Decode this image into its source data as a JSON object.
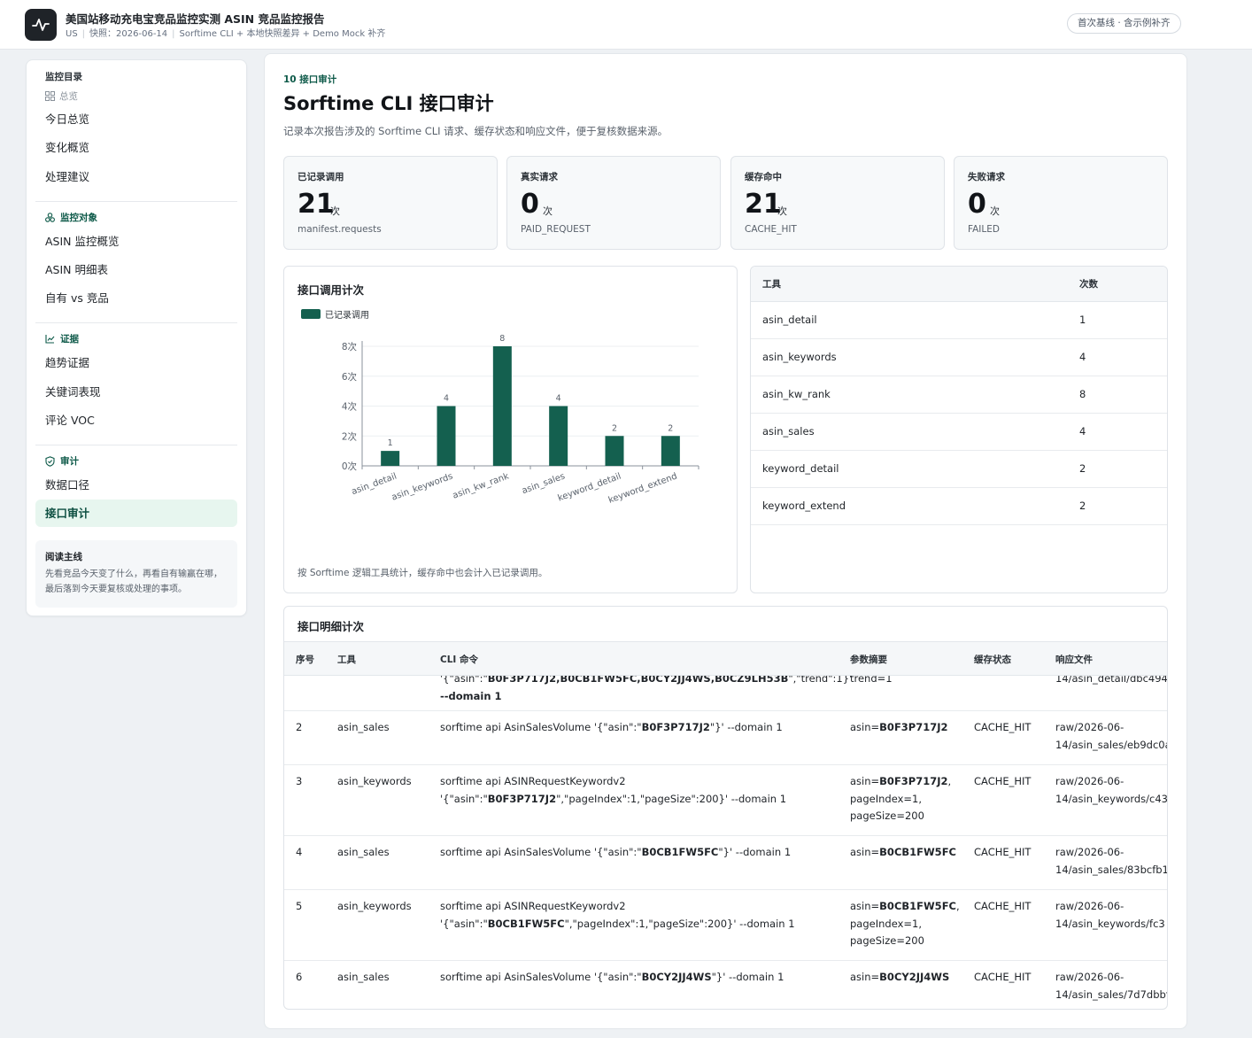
{
  "header": {
    "title": "美国站移动充电宝竞品监控实测 ASIN 竞品监控报告",
    "meta": [
      "US",
      "快照：2026-06-14",
      "Sorftime CLI + 本地快照差异 + Demo Mock 补齐"
    ],
    "baseline_badge": "首次基线 · 含示例补齐"
  },
  "sidebar": {
    "groups": [
      {
        "title": "监控目录",
        "sub": "总览",
        "items": [
          "今日总览",
          "变化概览",
          "处理建议"
        ]
      },
      {
        "title": "监控对象",
        "items": [
          "ASIN 监控概览",
          "ASIN 明细表",
          "自有 vs 竞品"
        ]
      },
      {
        "title": "证据",
        "items": [
          "趋势证据",
          "关键词表现",
          "评论 VOC"
        ]
      },
      {
        "title": "审计",
        "items": [
          "数据口径",
          "接口审计"
        ]
      }
    ],
    "active_item": "接口审计",
    "reading": {
      "title": "阅读主线",
      "text": "先看竞品今天变了什么，再看自有输赢在哪，最后落到今天要复核或处理的事项。"
    }
  },
  "section": {
    "kicker": "10 接口审计",
    "title": "Sorftime CLI 接口审计",
    "desc": "记录本次报告涉及的 Sorftime CLI 请求、缓存状态和响应文件，便于复核数据来源。"
  },
  "stats": [
    {
      "label": "已记录调用",
      "value": "21",
      "unit": "次",
      "foot": "manifest.requests"
    },
    {
      "label": "真实请求",
      "value": "0",
      "unit": "次",
      "foot": "PAID_REQUEST"
    },
    {
      "label": "缓存命中",
      "value": "21",
      "unit": "次",
      "foot": "CACHE_HIT"
    },
    {
      "label": "失败请求",
      "value": "0",
      "unit": "次",
      "foot": "FAILED"
    }
  ],
  "chart_data": {
    "type": "bar",
    "title": "接口调用计次",
    "legend": [
      "已记录调用"
    ],
    "legend_position": "top-left",
    "categories": [
      "asin_detail",
      "asin_keywords",
      "asin_kw_rank",
      "asin_sales",
      "keyword_detail",
      "keyword_extend"
    ],
    "series": [
      {
        "name": "已记录调用",
        "values": [
          1,
          4,
          8,
          4,
          2,
          2
        ]
      }
    ],
    "data_labels": [
      "1",
      "4",
      "8",
      "4",
      "2",
      "2"
    ],
    "y_ticks": [
      "0次",
      "2次",
      "4次",
      "6次",
      "8次"
    ],
    "ylim": [
      0,
      8
    ],
    "grid": true,
    "color": "#14604f",
    "note": "按 Sorftime 逻辑工具统计，缓存命中也会计入已记录调用。"
  },
  "tool_table": {
    "headers": [
      "工具",
      "次数"
    ],
    "rows": [
      [
        "asin_detail",
        "1"
      ],
      [
        "asin_keywords",
        "4"
      ],
      [
        "asin_kw_rank",
        "8"
      ],
      [
        "asin_sales",
        "4"
      ],
      [
        "keyword_detail",
        "2"
      ],
      [
        "keyword_extend",
        "2"
      ]
    ]
  },
  "detail": {
    "title": "接口明细计次",
    "headers": [
      "序号",
      "工具",
      "CLI 命令",
      "参数摘要",
      "缓存状态",
      "响应文件"
    ],
    "rows": [
      {
        "no": "",
        "tool": "",
        "cmd": [
          "'{\"asin\":\"",
          "B0F3P717J2,B0CB1FW5FC,B0CY2JJ4WS,B0CZ9LH53B",
          "\",\"trend\":1}'",
          "\n--domain 1"
        ],
        "param": [
          "trend=1"
        ],
        "status": "",
        "resp": [
          "14/asin_detail/dbc494"
        ]
      },
      {
        "no": "2",
        "tool": "asin_sales",
        "cmd": [
          "sorftime api AsinSalesVolume '{\"asin\":\"",
          "B0F3P717J2",
          "\"}' --domain 1"
        ],
        "param": [
          "asin=",
          "B0F3P717J2"
        ],
        "status": "CACHE_HIT",
        "resp": [
          "raw/2026-06-",
          "14/asin_sales/eb9dc0a"
        ]
      },
      {
        "no": "3",
        "tool": "asin_keywords",
        "cmd": [
          "sorftime api ASINRequestKeywordv2\n'{\"asin\":\"",
          "B0F3P717J2",
          "\",\"pageIndex\":1,\"pageSize\":200}' --domain 1"
        ],
        "param": [
          "asin=",
          "B0F3P717J2",
          ",\npageIndex=1,\npageSize=200"
        ],
        "status": "CACHE_HIT",
        "resp": [
          "raw/2026-06-",
          "14/asin_keywords/c43"
        ]
      },
      {
        "no": "4",
        "tool": "asin_sales",
        "cmd": [
          "sorftime api AsinSalesVolume '{\"asin\":\"",
          "B0CB1FW5FC",
          "\"}' --domain 1"
        ],
        "param": [
          "asin=",
          "B0CB1FW5FC"
        ],
        "status": "CACHE_HIT",
        "resp": [
          "raw/2026-06-",
          "14/asin_sales/83bcfb1"
        ]
      },
      {
        "no": "5",
        "tool": "asin_keywords",
        "cmd": [
          "sorftime api ASINRequestKeywordv2\n'{\"asin\":\"",
          "B0CB1FW5FC",
          "\",\"pageIndex\":1,\"pageSize\":200}' --domain 1"
        ],
        "param": [
          "asin=",
          "B0CB1FW5FC",
          ",\npageIndex=1,\npageSize=200"
        ],
        "status": "CACHE_HIT",
        "resp": [
          "raw/2026-06-",
          "14/asin_keywords/fc3"
        ]
      },
      {
        "no": "6",
        "tool": "asin_sales",
        "cmd": [
          "sorftime api AsinSalesVolume '{\"asin\":\"",
          "B0CY2JJ4WS",
          "\"}' --domain 1"
        ],
        "param": [
          "asin=",
          "B0CY2JJ4WS"
        ],
        "status": "CACHE_HIT",
        "resp": [
          "raw/2026-06-",
          "14/asin_sales/7d7dbbf"
        ]
      }
    ]
  }
}
